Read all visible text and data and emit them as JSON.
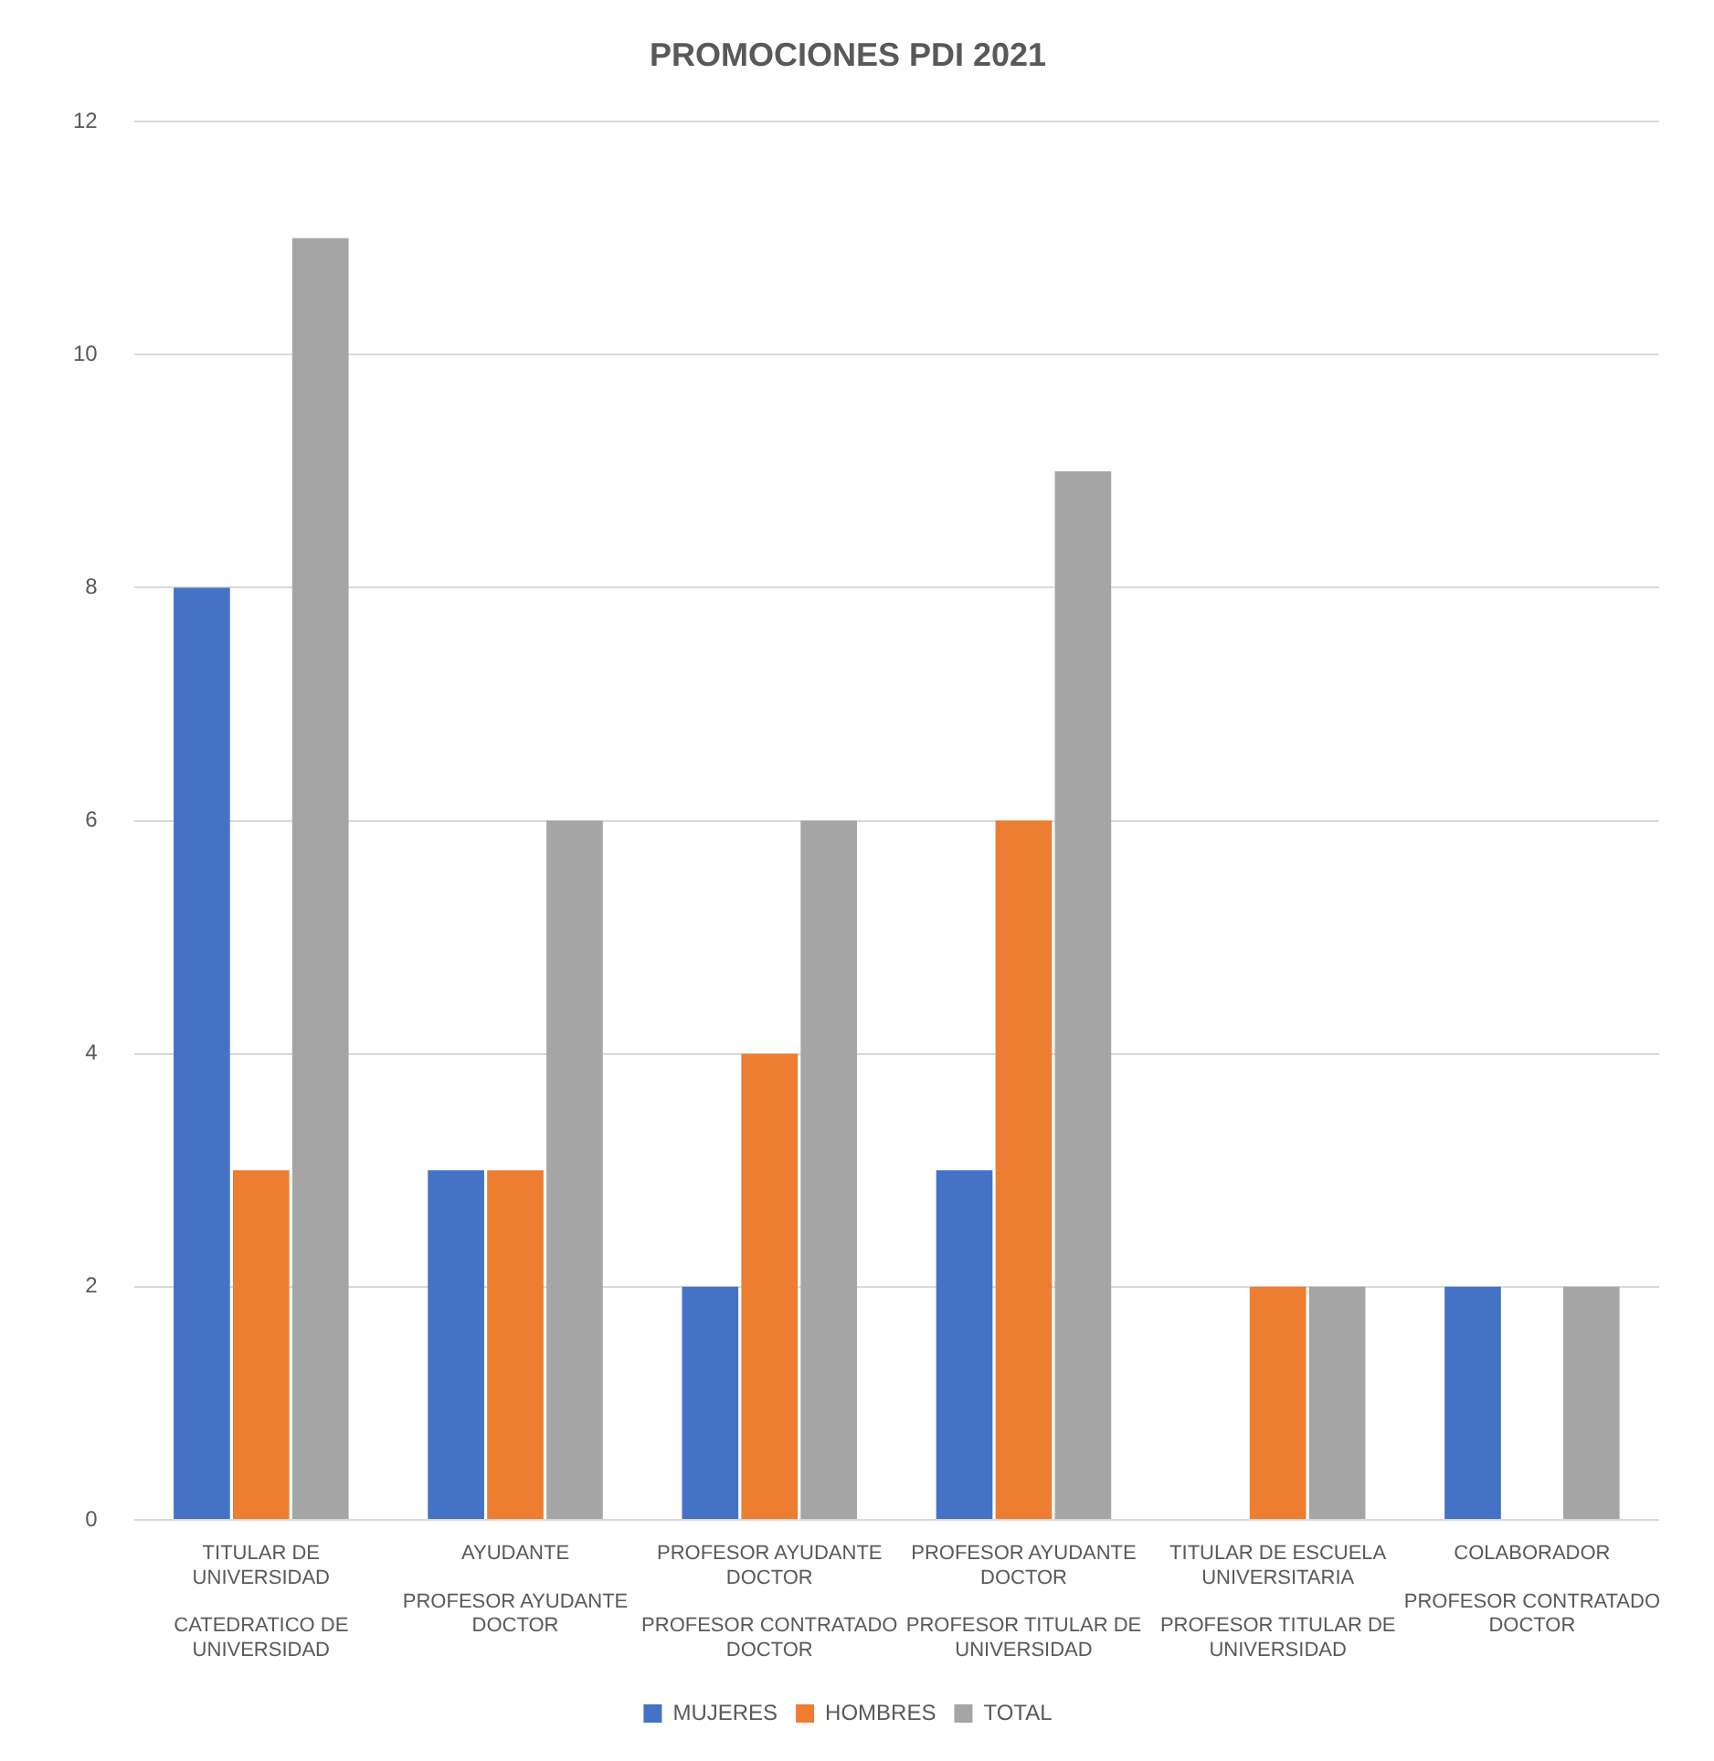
{
  "chart_data": {
    "type": "bar",
    "title": "PROMOCIONES PDI 2021",
    "categories": [
      "TITULAR DE UNIVERSIDAD\nCATEDRATICO DE UNIVERSIDAD",
      "AYUDANTE\nPROFESOR AYUDANTE DOCTOR",
      "PROFESOR AYUDANTE DOCTOR\nPROFESOR CONTRATADO DOCTOR",
      "PROFESOR AYUDANTE DOCTOR\nPROFESOR TITULAR DE UNIVERSIDAD",
      "TITULAR DE ESCUELA UNIVERSITARIA\nPROFESOR TITULAR DE UNIVERSIDAD",
      "COLABORADOR\nPROFESOR CONTRATADO DOCTOR"
    ],
    "series": [
      {
        "name": "MUJERES",
        "color": "#4472c4",
        "values": [
          8,
          3,
          2,
          3,
          0,
          2
        ]
      },
      {
        "name": "HOMBRES",
        "color": "#ed7d31",
        "values": [
          3,
          3,
          4,
          6,
          2,
          0
        ]
      },
      {
        "name": "TOTAL",
        "color": "#a5a5a5",
        "values": [
          11,
          6,
          6,
          9,
          2,
          2
        ]
      }
    ],
    "ylim": [
      0,
      12
    ],
    "yticks": [
      0,
      2,
      4,
      6,
      8,
      10,
      12
    ],
    "grid": "y",
    "legend": "bottom"
  }
}
